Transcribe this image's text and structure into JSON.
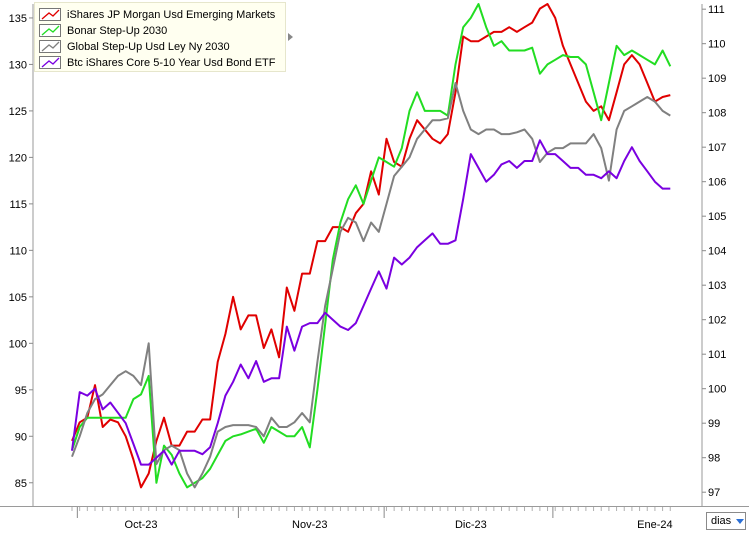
{
  "legend": {
    "items": [
      {
        "label": "iShares JP Morgan Usd Emerging Markets",
        "color": "#e00000"
      },
      {
        "label": "Bonar Step-Up 2030",
        "color": "#22dd22"
      },
      {
        "label": "Global Step-Up Usd Ley Ny 2030",
        "color": "#808080"
      },
      {
        "label": "Btc iShares Core 5-10 Year Usd Bond ETF",
        "color": "#7a00e0"
      }
    ]
  },
  "period_selector": {
    "value": "dias"
  },
  "chart_data": {
    "type": "line",
    "title": "",
    "xlabel": "",
    "x_tick_labels": [
      "Oct-23",
      "Nov-23",
      "Dic-23",
      "Ene-24"
    ],
    "x_tick_days": [
      9,
      31,
      52,
      76
    ],
    "left_axis": {
      "ylim": [
        82.5,
        136.5
      ],
      "ticks": [
        85,
        90,
        95,
        100,
        105,
        110,
        115,
        120,
        125,
        130,
        135
      ]
    },
    "right_axis": {
      "ylim": [
        96.6,
        111.15
      ],
      "ticks": [
        97,
        98,
        99,
        100,
        101,
        102,
        103,
        104,
        105,
        106,
        107,
        108,
        109,
        110,
        111
      ]
    },
    "grid": false,
    "legend_position": "top-left",
    "series": [
      {
        "name": "iShares JP Morgan Usd Emerging Markets",
        "color": "#e00000",
        "axis": "left",
        "values": [
          89.5,
          91.5,
          92,
          95.5,
          91,
          91.8,
          91.5,
          90,
          87.5,
          84.5,
          86,
          89.5,
          92,
          89,
          89,
          90.5,
          90.5,
          91.8,
          91.8,
          98,
          101,
          105,
          101.5,
          103,
          103,
          99.5,
          101.5,
          98.5,
          106,
          103.5,
          107.5,
          107.5,
          111,
          111,
          112.5,
          112.5,
          112,
          114,
          115,
          118.5,
          116,
          122,
          119.5,
          119,
          122,
          124,
          123,
          122,
          121.5,
          122.5,
          127,
          133,
          132.5,
          132.5,
          133,
          133.5,
          133.5,
          134,
          133.5,
          134,
          134.5,
          136,
          136.5,
          135,
          132,
          130,
          128,
          126,
          125,
          125.5,
          124,
          127,
          130,
          131,
          130,
          128,
          126,
          126.5,
          126.7
        ]
      },
      {
        "name": "Bonar Step-Up 2030",
        "color": "#22dd22",
        "axis": "left",
        "values": [
          88.5,
          91,
          92,
          92,
          92,
          92,
          92,
          92,
          94,
          94.5,
          96.5,
          85,
          89,
          88,
          86,
          84.5,
          85,
          85.5,
          86.5,
          88,
          89.5,
          90,
          90.2,
          90.5,
          90.8,
          89.3,
          91,
          90.5,
          90,
          90,
          91,
          88.8,
          95,
          102,
          109,
          113,
          115.5,
          117,
          115,
          117.5,
          120,
          119.5,
          119,
          121,
          125,
          127,
          125,
          125,
          125,
          124.5,
          130,
          134,
          135,
          136.5,
          134,
          132,
          132.5,
          131.5,
          131.5,
          131.5,
          131.8,
          129,
          130,
          130.5,
          131,
          130.8,
          130.8,
          130,
          127,
          124,
          128,
          132,
          131,
          131.5,
          131,
          130.5,
          130,
          131.5,
          129.8
        ]
      },
      {
        "name": "Global Step-Up Usd Ley Ny 2030",
        "color": "#808080",
        "axis": "left",
        "values": [
          87.8,
          90,
          92.5,
          94,
          94.5,
          95.5,
          96.5,
          97,
          96.5,
          95.5,
          100,
          87,
          88.5,
          89,
          88.5,
          86,
          84.5,
          86,
          87.8,
          90.5,
          91,
          91.2,
          91.2,
          91.2,
          91,
          90,
          92,
          91,
          91,
          91.5,
          92.5,
          91.5,
          98,
          104,
          108,
          112,
          113.5,
          113,
          111,
          113,
          112,
          115,
          118,
          119,
          120,
          122,
          123,
          124,
          124,
          124.2,
          128,
          125,
          123,
          122.5,
          123,
          123,
          122.5,
          122.5,
          122.7,
          123,
          122,
          119.5,
          120.5,
          121,
          121,
          121.5,
          121.5,
          121.5,
          122.5,
          121,
          117.5,
          123,
          125,
          125.5,
          126,
          126.5,
          126,
          125,
          124.5
        ]
      },
      {
        "name": "Btc iShares Core 5-10 Year Usd Bond ETF",
        "color": "#7a00e0",
        "axis": "right",
        "values": [
          98.2,
          99.9,
          99.8,
          100,
          99.4,
          99.6,
          99.3,
          99,
          98.4,
          97.8,
          97.8,
          98,
          98.2,
          97.8,
          98.2,
          98.2,
          98.2,
          98.1,
          98.3,
          99,
          99.8,
          100.2,
          100.7,
          100.3,
          100.8,
          100.2,
          100.3,
          100.3,
          101.8,
          101.1,
          101.8,
          101.9,
          101.9,
          102.2,
          102,
          101.8,
          101.7,
          101.9,
          102.4,
          102.9,
          103.4,
          102.9,
          103.8,
          103.6,
          103.8,
          104.1,
          104.3,
          104.5,
          104.2,
          104.2,
          104.3,
          105.5,
          106.8,
          106.4,
          106,
          106.2,
          106.5,
          106.6,
          106.4,
          106.6,
          106.6,
          107.2,
          106.8,
          106.8,
          106.6,
          106.4,
          106.4,
          106.2,
          106.2,
          106.1,
          106.3,
          106.1,
          106.6,
          107,
          106.6,
          106.3,
          106,
          105.8,
          105.8
        ]
      }
    ]
  }
}
